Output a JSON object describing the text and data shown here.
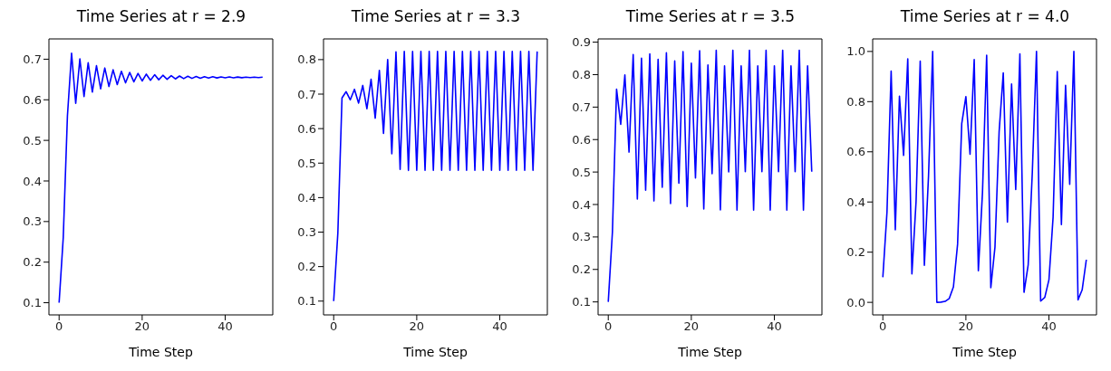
{
  "chart_data": [
    {
      "type": "line",
      "title": "Time Series at r = 2.9",
      "xlabel": "Time Step",
      "x": [
        0,
        1,
        2,
        3,
        4,
        5,
        6,
        7,
        8,
        9,
        10,
        11,
        12,
        13,
        14,
        15,
        16,
        17,
        18,
        19,
        20,
        21,
        22,
        23,
        24,
        25,
        26,
        27,
        28,
        29,
        30,
        31,
        32,
        33,
        34,
        35,
        36,
        37,
        38,
        39,
        40,
        41,
        42,
        43,
        44,
        45,
        46,
        47,
        48,
        49
      ],
      "xlim": [
        -2.45,
        51.45
      ],
      "xticks": [
        0,
        20,
        40
      ],
      "ylim": [
        0.07,
        0.75
      ],
      "yticks": [
        0.1,
        0.2,
        0.3,
        0.4,
        0.5,
        0.6,
        0.7
      ],
      "grid": false,
      "legend": false,
      "marker": "none",
      "line_style": "solid",
      "series": [
        {
          "color": "#0000ff",
          "values": [
            0.1,
            0.261,
            0.5594,
            0.7148,
            0.5912,
            0.7009,
            0.608,
            0.6912,
            0.619,
            0.6839,
            0.6269,
            0.6783,
            0.6328,
            0.6739,
            0.6373,
            0.6703,
            0.6417,
            0.6673,
            0.6443,
            0.665,
            0.6464,
            0.6632,
            0.648,
            0.6617,
            0.6494,
            0.6604,
            0.6505,
            0.6594,
            0.6514,
            0.6586,
            0.6521,
            0.658,
            0.6527,
            0.6575,
            0.6532,
            0.657,
            0.6536,
            0.6567,
            0.6539,
            0.6564,
            0.6541,
            0.6562,
            0.6543,
            0.656,
            0.6545,
            0.6559,
            0.6546,
            0.6558,
            0.6547,
            0.6557
          ]
        }
      ]
    },
    {
      "type": "line",
      "title": "Time Series at r = 3.3",
      "xlabel": "Time Step",
      "x": [
        0,
        1,
        2,
        3,
        4,
        5,
        6,
        7,
        8,
        9,
        10,
        11,
        12,
        13,
        14,
        15,
        16,
        17,
        18,
        19,
        20,
        21,
        22,
        23,
        24,
        25,
        26,
        27,
        28,
        29,
        30,
        31,
        32,
        33,
        34,
        35,
        36,
        37,
        38,
        39,
        40,
        41,
        42,
        43,
        44,
        45,
        46,
        47,
        48,
        49
      ],
      "xlim": [
        -2.45,
        51.45
      ],
      "xticks": [
        0,
        20,
        40
      ],
      "ylim": [
        0.06,
        0.86
      ],
      "yticks": [
        0.1,
        0.2,
        0.3,
        0.4,
        0.5,
        0.6,
        0.7,
        0.8
      ],
      "grid": false,
      "legend": false,
      "marker": "none",
      "line_style": "solid",
      "series": [
        {
          "color": "#0000ff",
          "values": [
            0.1,
            0.297,
            0.689,
            0.7071,
            0.6835,
            0.7139,
            0.674,
            0.7251,
            0.6577,
            0.7429,
            0.6303,
            0.769,
            0.5863,
            0.8005,
            0.5271,
            0.8226,
            0.4816,
            0.8239,
            0.4788,
            0.8235,
            0.4794,
            0.8236,
            0.4794,
            0.8236,
            0.4794,
            0.8236,
            0.4794,
            0.8236,
            0.4794,
            0.8236,
            0.4794,
            0.8236,
            0.4794,
            0.8236,
            0.4794,
            0.8236,
            0.4794,
            0.8236,
            0.4794,
            0.8236,
            0.4794,
            0.8236,
            0.4794,
            0.8236,
            0.4794,
            0.8236,
            0.4794,
            0.8236,
            0.4794,
            0.8236
          ]
        }
      ]
    },
    {
      "type": "line",
      "title": "Time Series at r = 3.5",
      "xlabel": "Time Step",
      "x": [
        0,
        1,
        2,
        3,
        4,
        5,
        6,
        7,
        8,
        9,
        10,
        11,
        12,
        13,
        14,
        15,
        16,
        17,
        18,
        19,
        20,
        21,
        22,
        23,
        24,
        25,
        26,
        27,
        28,
        29,
        30,
        31,
        32,
        33,
        34,
        35,
        36,
        37,
        38,
        39,
        40,
        41,
        42,
        43,
        44,
        45,
        46,
        47,
        48,
        49
      ],
      "xlim": [
        -2.45,
        51.45
      ],
      "xticks": [
        0,
        20,
        40
      ],
      "ylim": [
        0.06,
        0.91
      ],
      "yticks": [
        0.1,
        0.2,
        0.3,
        0.4,
        0.5,
        0.6,
        0.7,
        0.8,
        0.9
      ],
      "grid": false,
      "legend": false,
      "marker": "none",
      "line_style": "solid",
      "series": [
        {
          "color": "#0000ff",
          "values": [
            0.1,
            0.315,
            0.7552,
            0.647,
            0.7993,
            0.5614,
            0.8618,
            0.4169,
            0.8508,
            0.4443,
            0.8641,
            0.4109,
            0.8472,
            0.453,
            0.8673,
            0.4029,
            0.842,
            0.4657,
            0.8709,
            0.3936,
            0.8354,
            0.4814,
            0.8738,
            0.386,
            0.8295,
            0.495,
            0.8749,
            0.3831,
            0.8271,
            0.5005,
            0.875,
            0.3828,
            0.8269,
            0.5009,
            0.875,
            0.3828,
            0.8269,
            0.5009,
            0.875,
            0.3828,
            0.8269,
            0.5009,
            0.875,
            0.3828,
            0.8269,
            0.5009,
            0.875,
            0.3828,
            0.8269,
            0.5009
          ]
        }
      ]
    },
    {
      "type": "line",
      "title": "Time Series at r = 4.0",
      "xlabel": "Time Step",
      "x": [
        0,
        1,
        2,
        3,
        4,
        5,
        6,
        7,
        8,
        9,
        10,
        11,
        12,
        13,
        14,
        15,
        16,
        17,
        18,
        19,
        20,
        21,
        22,
        23,
        24,
        25,
        26,
        27,
        28,
        29,
        30,
        31,
        32,
        33,
        34,
        35,
        36,
        37,
        38,
        39,
        40,
        41,
        42,
        43,
        44,
        45,
        46,
        47,
        48,
        49
      ],
      "xlim": [
        -2.45,
        51.45
      ],
      "xticks": [
        0,
        20,
        40
      ],
      "ylim": [
        -0.05,
        1.05
      ],
      "yticks": [
        {
          "value": 0,
          "label": "0.0"
        },
        0.2,
        0.4,
        0.6,
        0.8,
        {
          "value": 1,
          "label": "1.0"
        }
      ],
      "grid": false,
      "legend": false,
      "marker": "none",
      "line_style": "solid",
      "series": [
        {
          "color": "#0000ff",
          "values": [
            0.1,
            0.36,
            0.9216,
            0.289,
            0.8219,
            0.5854,
            0.9708,
            0.1134,
            0.402,
            0.9616,
            0.1478,
            0.5038,
            0.9999,
            0.0002,
            0.001,
            0.0039,
            0.0157,
            0.0617,
            0.2317,
            0.7124,
            0.8202,
            0.59,
            0.9678,
            0.1256,
            0.4391,
            0.985,
            0.0584,
            0.22,
            0.68,
            0.915,
            0.32,
            0.87,
            0.45,
            0.99,
            0.04,
            0.15,
            0.52,
            1.0,
            0.005,
            0.02,
            0.09,
            0.34,
            0.92,
            0.31,
            0.865,
            0.47,
            1.0,
            0.01,
            0.05,
            0.17
          ]
        }
      ]
    }
  ]
}
